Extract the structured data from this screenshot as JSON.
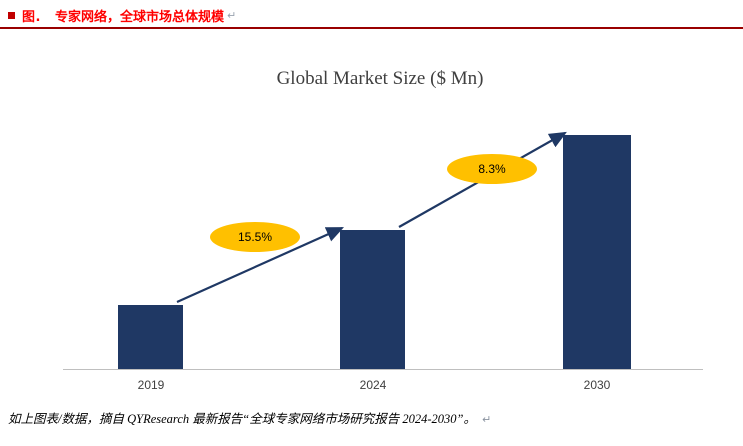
{
  "colors": {
    "heading_red": "#FF0000",
    "bullet_red": "#C00000",
    "rule_red": "#990000",
    "bar_navy": "#1F3864",
    "arrow_navy": "#1F3864",
    "ellipse_gold": "#FFC000",
    "axis_gray": "#BFBFBF",
    "tick_gray": "#404040"
  },
  "header": {
    "prefix": "图.",
    "title": "专家网络，全球市场总体规模",
    "paragraph_mark": "↵"
  },
  "chart_data": {
    "type": "bar",
    "title": "Global Market Size ($ Mn)",
    "categories": [
      "2019",
      "2024",
      "2030"
    ],
    "relative_values": [
      1,
      2.15,
      3.6
    ],
    "value_axis": "unlabeled",
    "gridlines": false,
    "legend": "none",
    "arrows": [
      {
        "from": 0,
        "to": 1,
        "label": "15.5%"
      },
      {
        "from": 1,
        "to": 2,
        "label": "8.3%"
      }
    ]
  },
  "footer": {
    "text": "如上图表/数据，摘自 QYResearch 最新报告“全球专家网络市场研究报告 2024-2030”。",
    "paragraph_mark": "↵"
  }
}
